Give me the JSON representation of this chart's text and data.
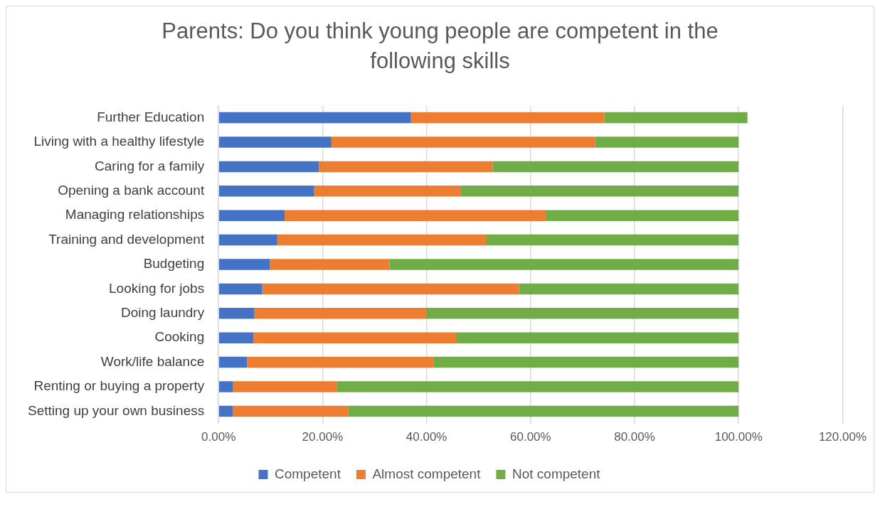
{
  "chart_data": {
    "type": "bar",
    "orientation": "horizontal",
    "stacked": true,
    "title": "Parents: Do you think young people are competent in the following skills",
    "categories": [
      "Further Education",
      "Living with a healthy lifestyle",
      "Caring for a family",
      "Opening a bank account",
      "Managing relationships",
      "Training and development",
      "Budgeting",
      "Looking for jobs",
      "Doing laundry",
      "Cooking",
      "Work/life balance",
      "Renting or buying a property",
      "Setting up your own business"
    ],
    "series": [
      {
        "name": "Competent",
        "color": "#4472c4",
        "values": [
          37.0,
          21.7,
          19.3,
          18.3,
          12.7,
          11.3,
          9.9,
          8.4,
          6.9,
          6.7,
          5.5,
          2.8,
          2.7
        ]
      },
      {
        "name": "Almost competent",
        "color": "#ed7d31",
        "values": [
          37.2,
          50.7,
          33.4,
          28.2,
          50.2,
          40.1,
          23.0,
          49.4,
          33.0,
          39.1,
          35.9,
          20.0,
          22.2
        ]
      },
      {
        "name": "Not competent",
        "color": "#70ad47",
        "values": [
          27.5,
          27.6,
          47.3,
          53.5,
          37.1,
          48.6,
          67.1,
          42.2,
          60.1,
          54.2,
          58.6,
          77.2,
          75.1
        ]
      }
    ],
    "xlim": [
      0,
      120
    ],
    "xticks": [
      {
        "value": 0,
        "label": "0.00%"
      },
      {
        "value": 20,
        "label": "20.00%"
      },
      {
        "value": 40,
        "label": "40.00%"
      },
      {
        "value": 60,
        "label": "60.00%"
      },
      {
        "value": 80,
        "label": "80.00%"
      },
      {
        "value": 100,
        "label": "100.00%"
      },
      {
        "value": 120,
        "label": "120.00%"
      }
    ],
    "grid": "x",
    "legend": "bottom"
  }
}
